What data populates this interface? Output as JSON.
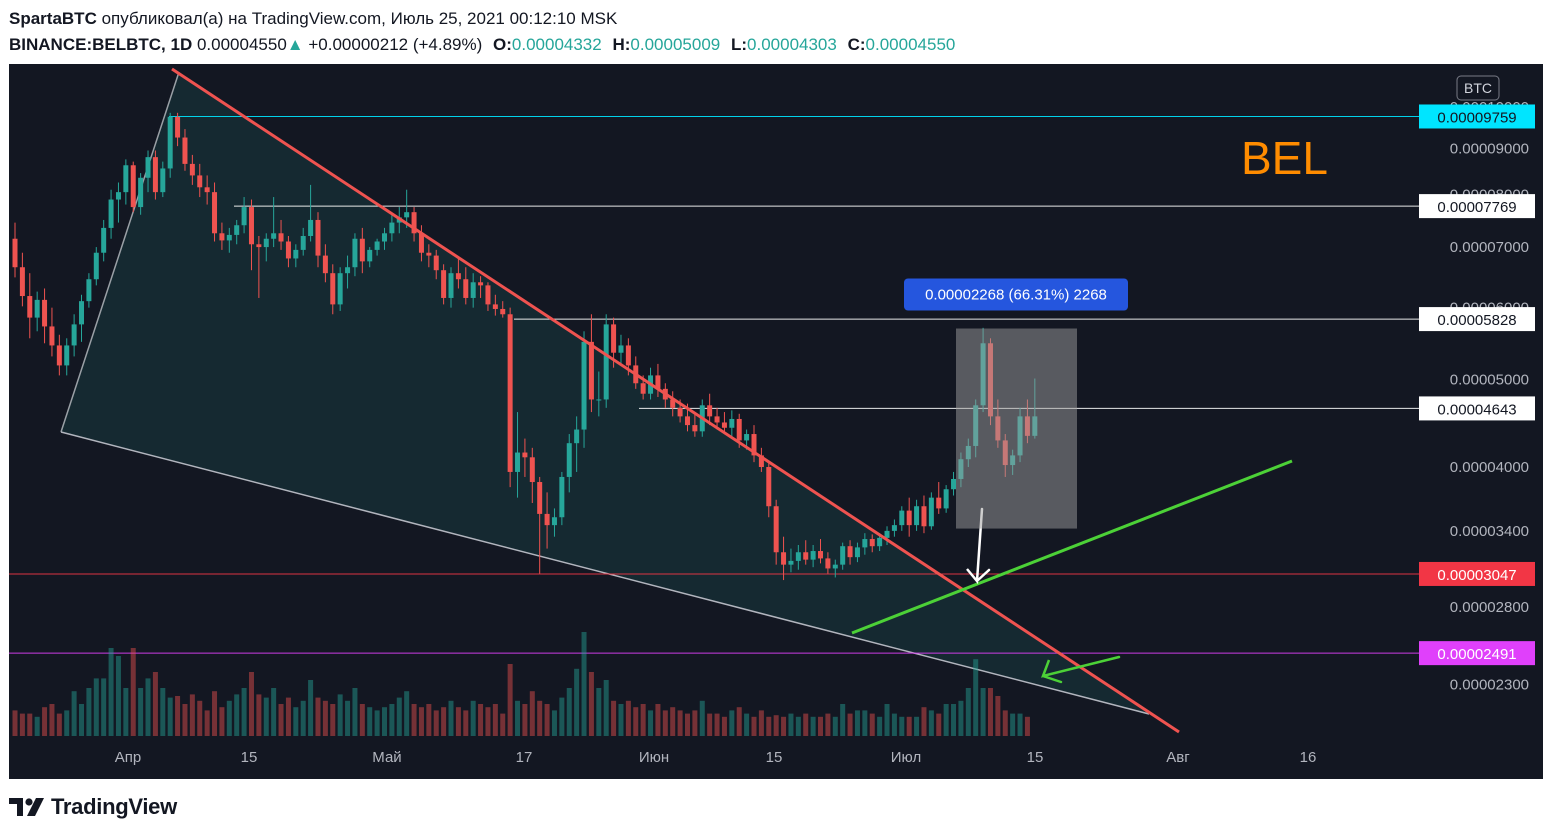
{
  "header": {
    "author": "SpartaBTC",
    "published": "опубликовал(а) на TradingView.com, Июль 25, 2021 00:12:10 MSK",
    "symbol": "BINANCE:BELBTC, 1D",
    "price": "0.00004550",
    "arrow": "▲",
    "change": "+0.00000212 (+4.89%)",
    "o_label": "O:",
    "o": "0.00004332",
    "h_label": "H:",
    "h": "0.00005009",
    "l_label": "L:",
    "l": "0.00004303",
    "c_label": "C:",
    "c": "0.00004550"
  },
  "footer": {
    "brand": "TradingView"
  },
  "chart_data": {
    "type": "candlestick",
    "ticker_label": "BEL",
    "currency_badge": "BTC",
    "x_ticks": [
      "Апр",
      "15",
      "Май",
      "17",
      "Июн",
      "15",
      "Июл",
      "15",
      "Авг",
      "16"
    ],
    "y_ticks": [
      "0.00010000",
      "0.00009000",
      "0.00008000",
      "0.00007000",
      "0.00006000",
      "0.00005000",
      "0.00004000",
      "0.00003400",
      "0.00002800",
      "0.00002300"
    ],
    "y_tick_values": [
      0.0001,
      9e-05,
      8e-05,
      7e-05,
      6e-05,
      5e-05,
      4e-05,
      3.4e-05,
      2.8e-05,
      2.3e-05
    ],
    "y_scale": "log",
    "ylim": [
      2.08e-05,
      0.000106
    ],
    "levels": [
      {
        "value": 9.759e-05,
        "label": "0.00009759",
        "color": "#00e5ff",
        "text_color": "#131722"
      },
      {
        "value": 7.769e-05,
        "label": "0.00007769",
        "color": "#ffffff",
        "text_color": "#131722"
      },
      {
        "value": 5.828e-05,
        "label": "0.00005828",
        "color": "#ffffff",
        "text_color": "#131722"
      },
      {
        "value": 4.643e-05,
        "label": "0.00004643",
        "color": "#ffffff",
        "text_color": "#131722"
      },
      {
        "value": 3.047e-05,
        "label": "0.00003047",
        "color": "#f23645",
        "text_color": "#ffffff"
      },
      {
        "value": 2.491e-05,
        "label": "0.00002491",
        "color": "#e040fb",
        "text_color": "#ffffff"
      }
    ],
    "measure": {
      "label": "0.00002268 (66.31%) 2268",
      "from": 3.42e-05,
      "to": 5.69e-05
    },
    "candles": [
      [
        7.15e-05,
        7.45e-05,
        6.48e-05,
        6.65e-05
      ],
      [
        6.65e-05,
        6.9e-05,
        6.02e-05,
        6.18e-05
      ],
      [
        6.18e-05,
        6.55e-05,
        5.55e-05,
        5.85e-05
      ],
      [
        5.85e-05,
        6.25e-05,
        5.65e-05,
        6.12e-05
      ],
      [
        6.12e-05,
        6.3e-05,
        5.48e-05,
        5.72e-05
      ],
      [
        5.72e-05,
        6e-05,
        5.3e-05,
        5.45e-05
      ],
      [
        5.45e-05,
        5.6e-05,
        5.05e-05,
        5.18e-05
      ],
      [
        5.18e-05,
        5.55e-05,
        5.05e-05,
        5.45e-05
      ],
      [
        5.45e-05,
        5.9e-05,
        5.3e-05,
        5.75e-05
      ],
      [
        5.75e-05,
        6.2e-05,
        5.5e-05,
        6.1e-05
      ],
      [
        6.1e-05,
        6.55e-05,
        6e-05,
        6.45e-05
      ],
      [
        6.45e-05,
        7e-05,
        6.35e-05,
        6.9e-05
      ],
      [
        6.9e-05,
        7.5e-05,
        6.75e-05,
        7.35e-05
      ],
      [
        7.35e-05,
        8.1e-05,
        7.15e-05,
        7.9e-05
      ],
      [
        7.9e-05,
        8.25e-05,
        7.45e-05,
        8.05e-05
      ],
      [
        8.05e-05,
        8.75e-05,
        7.8e-05,
        8.62e-05
      ],
      [
        8.62e-05,
        8.7e-05,
        7.65e-05,
        7.75e-05
      ],
      [
        7.75e-05,
        8.45e-05,
        7.6e-05,
        8.35e-05
      ],
      [
        8.35e-05,
        8.95e-05,
        8.05e-05,
        8.8e-05
      ],
      [
        8.8e-05,
        8.95e-05,
        7.9e-05,
        8.05e-05
      ],
      [
        8.05e-05,
        8.7e-05,
        7.95e-05,
        8.55e-05
      ],
      [
        8.55e-05,
        9.85e-05,
        8.35e-05,
        9.75e-05
      ],
      [
        9.75e-05,
        9.85e-05,
        9.05e-05,
        9.25e-05
      ],
      [
        9.25e-05,
        9.45e-05,
        8.5e-05,
        8.65e-05
      ],
      [
        8.65e-05,
        8.85e-05,
        8.2e-05,
        8.4e-05
      ],
      [
        8.4e-05,
        8.65e-05,
        7.95e-05,
        8.15e-05
      ],
      [
        8.15e-05,
        8.4e-05,
        7.8e-05,
        8.05e-05
      ],
      [
        8.05e-05,
        8.25e-05,
        7.1e-05,
        7.25e-05
      ],
      [
        7.25e-05,
        7.45e-05,
        6.95e-05,
        7.12e-05
      ],
      [
        7.12e-05,
        7.35e-05,
        6.9e-05,
        7.22e-05
      ],
      [
        7.22e-05,
        7.5e-05,
        7.05e-05,
        7.4e-05
      ],
      [
        7.4e-05,
        7.95e-05,
        7.25e-05,
        7.75e-05
      ],
      [
        7.75e-05,
        7.9e-05,
        6.6e-05,
        7.05e-05
      ],
      [
        7.05e-05,
        7.2e-05,
        6.15e-05,
        7e-05
      ],
      [
        7e-05,
        7.25e-05,
        6.75e-05,
        7.15e-05
      ],
      [
        7.15e-05,
        7.95e-05,
        7e-05,
        7.25e-05
      ],
      [
        7.25e-05,
        7.5e-05,
        6.95e-05,
        7.1e-05
      ],
      [
        7.1e-05,
        7.2e-05,
        6.65e-05,
        6.8e-05
      ],
      [
        6.8e-05,
        7.05e-05,
        6.65e-05,
        6.95e-05
      ],
      [
        6.95e-05,
        7.35e-05,
        6.85e-05,
        7.2e-05
      ],
      [
        7.2e-05,
        8.2e-05,
        7.1e-05,
        7.5e-05
      ],
      [
        7.5e-05,
        7.65e-05,
        6.65e-05,
        6.85e-05
      ],
      [
        6.85e-05,
        7.05e-05,
        6.4e-05,
        6.55e-05
      ],
      [
        6.55e-05,
        6.7e-05,
        5.9e-05,
        6.05e-05
      ],
      [
        6.05e-05,
        6.65e-05,
        5.95e-05,
        6.55e-05
      ],
      [
        6.55e-05,
        6.85e-05,
        6.3e-05,
        6.65e-05
      ],
      [
        6.65e-05,
        7.25e-05,
        6.5e-05,
        7.15e-05
      ],
      [
        7.15e-05,
        7.35e-05,
        6.55e-05,
        6.75e-05
      ],
      [
        6.75e-05,
        7e-05,
        6.65e-05,
        6.95e-05
      ],
      [
        6.95e-05,
        7.15e-05,
        6.85e-05,
        7.1e-05
      ],
      [
        7.1e-05,
        7.35e-05,
        6.95e-05,
        7.25e-05
      ],
      [
        7.25e-05,
        7.6e-05,
        7.1e-05,
        7.45e-05
      ],
      [
        7.45e-05,
        7.75e-05,
        7.25e-05,
        7.55e-05
      ],
      [
        7.55e-05,
        8.1e-05,
        7.35e-05,
        7.65e-05
      ],
      [
        7.65e-05,
        7.75e-05,
        7.1e-05,
        7.25e-05
      ],
      [
        7.25e-05,
        7.4e-05,
        6.75e-05,
        6.9e-05
      ],
      [
        6.9e-05,
        7.05e-05,
        6.65e-05,
        6.85e-05
      ],
      [
        6.85e-05,
        6.95e-05,
        6.45e-05,
        6.6e-05
      ],
      [
        6.6e-05,
        6.7e-05,
        6.05e-05,
        6.15e-05
      ],
      [
        6.15e-05,
        6.65e-05,
        6e-05,
        6.55e-05
      ],
      [
        6.55e-05,
        6.8e-05,
        6.3e-05,
        6.45e-05
      ],
      [
        6.45e-05,
        6.65e-05,
        6.05e-05,
        6.15e-05
      ],
      [
        6.15e-05,
        6.55e-05,
        6e-05,
        6.4e-05
      ],
      [
        6.4e-05,
        6.5e-05,
        6.15e-05,
        6.35e-05
      ],
      [
        6.35e-05,
        6.4e-05,
        5.95e-05,
        6.05e-05
      ],
      [
        6.05e-05,
        6.2e-05,
        5.88e-05,
        5.98e-05
      ],
      [
        5.98e-05,
        6.1e-05,
        5.85e-05,
        5.9e-05
      ],
      [
        5.9e-05,
        6e-05,
        3.8e-05,
        3.95e-05
      ],
      [
        3.95e-05,
        4.6e-05,
        3.7e-05,
        4.15e-05
      ],
      [
        4.15e-05,
        4.3e-05,
        3.9e-05,
        4.1e-05
      ],
      [
        4.1e-05,
        4.2e-05,
        3.65e-05,
        3.85e-05
      ],
      [
        3.85e-05,
        3.9e-05,
        3.05e-05,
        3.55e-05
      ],
      [
        3.55e-05,
        3.75e-05,
        3.25e-05,
        3.45e-05
      ],
      [
        3.45e-05,
        3.6e-05,
        3.35e-05,
        3.52e-05
      ],
      [
        3.52e-05,
        3.95e-05,
        3.45e-05,
        3.9e-05
      ],
      [
        3.9e-05,
        4.35e-05,
        3.75e-05,
        4.25e-05
      ],
      [
        4.25e-05,
        4.55e-05,
        3.95e-05,
        4.4e-05
      ],
      [
        4.4e-05,
        5.65e-05,
        4.2e-05,
        5.5e-05
      ],
      [
        5.5e-05,
        5.9e-05,
        4.6e-05,
        4.75e-05
      ],
      [
        4.75e-05,
        5.1e-05,
        4.55e-05,
        4.75e-05
      ],
      [
        4.75e-05,
        5.9e-05,
        4.65e-05,
        5.75e-05
      ],
      [
        5.75e-05,
        5.85e-05,
        5.15e-05,
        5.35e-05
      ],
      [
        5.35e-05,
        5.6e-05,
        5.2e-05,
        5.45e-05
      ],
      [
        5.45e-05,
        5.55e-05,
        5.05e-05,
        5.18e-05
      ],
      [
        5.18e-05,
        5.3e-05,
        4.88e-05,
        4.95e-05
      ],
      [
        4.95e-05,
        5.05e-05,
        4.75e-05,
        4.82e-05
      ],
      [
        4.82e-05,
        5.15e-05,
        4.75e-05,
        5.05e-05
      ],
      [
        5.05e-05,
        5.2e-05,
        4.78e-05,
        4.88e-05
      ],
      [
        4.88e-05,
        4.95e-05,
        4.65e-05,
        4.75e-05
      ],
      [
        4.75e-05,
        4.85e-05,
        4.55e-05,
        4.65e-05
      ],
      [
        4.65e-05,
        4.75e-05,
        4.48e-05,
        4.55e-05
      ],
      [
        4.55e-05,
        4.7e-05,
        4.38e-05,
        4.45e-05
      ],
      [
        4.45e-05,
        4.6e-05,
        4.32e-05,
        4.38e-05
      ],
      [
        4.38e-05,
        4.75e-05,
        4.32e-05,
        4.68e-05
      ],
      [
        4.68e-05,
        4.82e-05,
        4.45e-05,
        4.55e-05
      ],
      [
        4.55e-05,
        4.65e-05,
        4.4e-05,
        4.48e-05
      ],
      [
        4.48e-05,
        4.6e-05,
        4.35e-05,
        4.42e-05
      ],
      [
        4.42e-05,
        4.62e-05,
        4.32e-05,
        4.52e-05
      ],
      [
        4.52e-05,
        4.58e-05,
        4.2e-05,
        4.28e-05
      ],
      [
        4.28e-05,
        4.4e-05,
        4.18e-05,
        4.35e-05
      ],
      [
        4.35e-05,
        4.45e-05,
        4.05e-05,
        4.12e-05
      ],
      [
        4.12e-05,
        4.2e-05,
        3.95e-05,
        4e-05
      ],
      [
        4e-05,
        4.05e-05,
        3.52e-05,
        3.62e-05
      ],
      [
        3.62e-05,
        3.68e-05,
        3.12e-05,
        3.22e-05
      ],
      [
        3.22e-05,
        3.35e-05,
        3e-05,
        3.12e-05
      ],
      [
        3.12e-05,
        3.25e-05,
        3.06e-05,
        3.15e-05
      ],
      [
        3.15e-05,
        3.28e-05,
        3.08e-05,
        3.22e-05
      ],
      [
        3.22e-05,
        3.32e-05,
        3.12e-05,
        3.16e-05
      ],
      [
        3.16e-05,
        3.28e-05,
        3.1e-05,
        3.23e-05
      ],
      [
        3.23e-05,
        3.33e-05,
        3.13e-05,
        3.17e-05
      ],
      [
        3.17e-05,
        3.22e-05,
        3.05e-05,
        3.09e-05
      ],
      [
        3.09e-05,
        3.16e-05,
        3.02e-05,
        3.12e-05
      ],
      [
        3.12e-05,
        3.3e-05,
        3.08e-05,
        3.27e-05
      ],
      [
        3.27e-05,
        3.32e-05,
        3.12e-05,
        3.18e-05
      ],
      [
        3.18e-05,
        3.3e-05,
        3.14e-05,
        3.26e-05
      ],
      [
        3.26e-05,
        3.38e-05,
        3.2e-05,
        3.33e-05
      ],
      [
        3.33e-05,
        3.37e-05,
        3.22e-05,
        3.27e-05
      ],
      [
        3.27e-05,
        3.38e-05,
        3.23e-05,
        3.34e-05
      ],
      [
        3.34e-05,
        3.44e-05,
        3.28e-05,
        3.4e-05
      ],
      [
        3.4e-05,
        3.5e-05,
        3.35e-05,
        3.45e-05
      ],
      [
        3.45e-05,
        3.62e-05,
        3.4e-05,
        3.58e-05
      ],
      [
        3.58e-05,
        3.7e-05,
        3.35e-05,
        3.45e-05
      ],
      [
        3.45e-05,
        3.68e-05,
        3.4e-05,
        3.62e-05
      ],
      [
        3.62e-05,
        3.72e-05,
        3.38e-05,
        3.44e-05
      ],
      [
        3.44e-05,
        3.75e-05,
        3.41e-05,
        3.7e-05
      ],
      [
        3.7e-05,
        3.85e-05,
        3.55e-05,
        3.6e-05
      ],
      [
        3.6e-05,
        3.82e-05,
        3.56e-05,
        3.78e-05
      ],
      [
        3.78e-05,
        3.95e-05,
        3.72e-05,
        3.88e-05
      ],
      [
        3.88e-05,
        4.15e-05,
        3.8e-05,
        4.08e-05
      ],
      [
        4.08e-05,
        4.3e-05,
        4e-05,
        4.22e-05
      ],
      [
        4.22e-05,
        4.75e-05,
        4.1e-05,
        4.68e-05
      ],
      [
        4.68e-05,
        5.7e-05,
        4.6e-05,
        5.48e-05
      ],
      [
        5.48e-05,
        5.55e-05,
        4.45e-05,
        4.55e-05
      ],
      [
        4.55e-05,
        4.75e-05,
        4.2e-05,
        4.28e-05
      ],
      [
        4.28e-05,
        4.35e-05,
        3.9e-05,
        4.02e-05
      ],
      [
        4.02e-05,
        4.18e-05,
        3.92e-05,
        4.12e-05
      ],
      [
        4.12e-05,
        4.65e-05,
        4.05e-05,
        4.55e-05
      ],
      [
        4.55e-05,
        4.75e-05,
        4.25e-05,
        4.33e-05
      ],
      [
        4.33e-05,
        5.01e-05,
        4.3e-05,
        4.55e-05
      ]
    ],
    "volumes": [
      0.16,
      0.14,
      0.14,
      0.12,
      0.18,
      0.2,
      0.14,
      0.16,
      0.28,
      0.2,
      0.3,
      0.36,
      0.36,
      0.55,
      0.5,
      0.3,
      0.55,
      0.3,
      0.36,
      0.4,
      0.3,
      0.24,
      0.25,
      0.2,
      0.26,
      0.22,
      0.16,
      0.28,
      0.18,
      0.22,
      0.26,
      0.3,
      0.4,
      0.26,
      0.24,
      0.3,
      0.2,
      0.24,
      0.18,
      0.22,
      0.35,
      0.24,
      0.22,
      0.2,
      0.26,
      0.22,
      0.3,
      0.2,
      0.18,
      0.16,
      0.18,
      0.2,
      0.24,
      0.28,
      0.2,
      0.18,
      0.2,
      0.16,
      0.18,
      0.22,
      0.18,
      0.16,
      0.22,
      0.2,
      0.18,
      0.2,
      0.14,
      0.45,
      0.22,
      0.2,
      0.28,
      0.22,
      0.2,
      0.16,
      0.24,
      0.3,
      0.42,
      0.65,
      0.4,
      0.3,
      0.35,
      0.22,
      0.2,
      0.22,
      0.18,
      0.2,
      0.16,
      0.2,
      0.16,
      0.18,
      0.16,
      0.14,
      0.16,
      0.22,
      0.14,
      0.14,
      0.12,
      0.16,
      0.18,
      0.14,
      0.12,
      0.16,
      0.12,
      0.13,
      0.12,
      0.14,
      0.12,
      0.14,
      0.12,
      0.12,
      0.14,
      0.12,
      0.2,
      0.14,
      0.16,
      0.16,
      0.14,
      0.12,
      0.2,
      0.14,
      0.12,
      0.12,
      0.12,
      0.18,
      0.16,
      0.14,
      0.2,
      0.2,
      0.22,
      0.3,
      0.48,
      0.3,
      0.3,
      0.25,
      0.16,
      0.14,
      0.14,
      0.12
    ]
  }
}
